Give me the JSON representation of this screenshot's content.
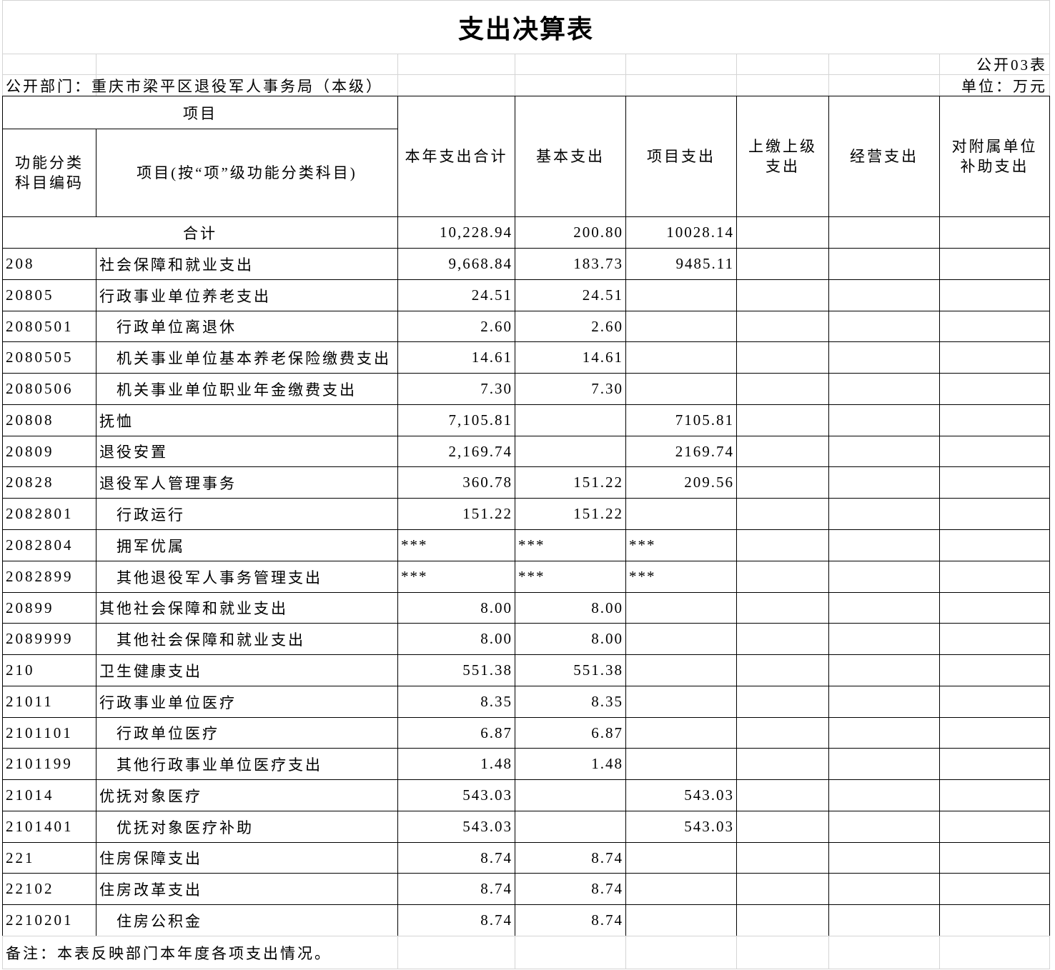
{
  "title": "支出决算表",
  "form_no": "公开03表",
  "department": "公开部门：重庆市梁平区退役军人事务局（本级）",
  "unit": "单位：万元",
  "header": {
    "group": "项目",
    "code": [
      "功能分类",
      "科目编码"
    ],
    "name": [
      "项目(按“项”级功能分类科目)"
    ],
    "columns": [
      [
        "本年支出合计"
      ],
      [
        "基本支出"
      ],
      [
        "项目支出"
      ],
      [
        "上缴上级",
        "支出"
      ],
      [
        "经营支出"
      ],
      [
        "对附属单位",
        "补助支出"
      ]
    ]
  },
  "total": {
    "label": "合计",
    "values": [
      "10,228.94",
      "200.80",
      "10028.14"
    ]
  },
  "rows": [
    {
      "code": "208",
      "name": "社会保障和就业支出",
      "values": [
        "9,668.84",
        "183.73",
        "9485.11"
      ]
    },
    {
      "code": "20805",
      "name": "行政事业单位养老支出",
      "values": [
        "24.51",
        "24.51"
      ]
    },
    {
      "code": "2080501",
      "name": "行政单位离退休",
      "values": [
        "2.60",
        "2.60"
      ]
    },
    {
      "code": "2080505",
      "name": "机关事业单位基本养老保险缴费支出",
      "values": [
        "14.61",
        "14.61"
      ]
    },
    {
      "code": "2080506",
      "name": "机关事业单位职业年金缴费支出",
      "values": [
        "7.30",
        "7.30"
      ]
    },
    {
      "code": "20808",
      "name": "抚恤",
      "values": [
        "7,105.81",
        null,
        "7105.81"
      ]
    },
    {
      "code": "20809",
      "name": "退役安置",
      "values": [
        "2,169.74",
        null,
        "2169.74"
      ]
    },
    {
      "code": "20828",
      "name": "退役军人管理事务",
      "values": [
        "360.78",
        "151.22",
        "209.56"
      ]
    },
    {
      "code": "2082801",
      "name": "行政运行",
      "values": [
        "151.22",
        "151.22"
      ]
    },
    {
      "code": "2082804",
      "name": "拥军优属",
      "values": [
        "***",
        "***",
        "***"
      ]
    },
    {
      "code": "2082899",
      "name": "其他退役军人事务管理支出",
      "values": [
        "***",
        "***",
        "***"
      ]
    },
    {
      "code": "20899",
      "name": "其他社会保障和就业支出",
      "values": [
        "8.00",
        "8.00"
      ]
    },
    {
      "code": "2089999",
      "name": "其他社会保障和就业支出",
      "values": [
        "8.00",
        "8.00"
      ]
    },
    {
      "code": "210",
      "name": "卫生健康支出",
      "values": [
        "551.38",
        "551.38"
      ]
    },
    {
      "code": "21011",
      "name": "行政事业单位医疗",
      "values": [
        "8.35",
        "8.35"
      ]
    },
    {
      "code": "2101101",
      "name": "行政单位医疗",
      "values": [
        "6.87",
        "6.87"
      ]
    },
    {
      "code": "2101199",
      "name": "其他行政事业单位医疗支出",
      "values": [
        "1.48",
        "1.48"
      ]
    },
    {
      "code": "21014",
      "name": "优抚对象医疗",
      "values": [
        "543.03",
        null,
        "543.03"
      ]
    },
    {
      "code": "2101401",
      "name": "优抚对象医疗补助",
      "values": [
        "543.03",
        null,
        "543.03"
      ]
    },
    {
      "code": "221",
      "name": "住房保障支出",
      "values": [
        "8.74",
        "8.74"
      ]
    },
    {
      "code": "22102",
      "name": "住房改革支出",
      "values": [
        "8.74",
        "8.74"
      ]
    },
    {
      "code": "2210201",
      "name": "住房公积金",
      "values": [
        "8.74",
        "8.74"
      ]
    }
  ],
  "note": "备注：本表反映部门本年度各项支出情况。"
}
